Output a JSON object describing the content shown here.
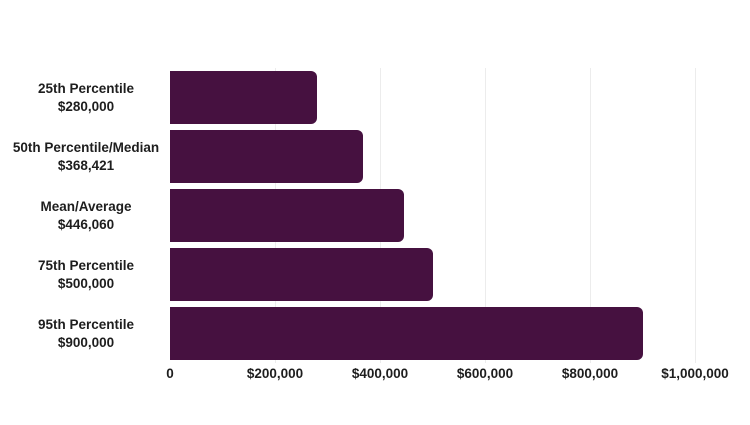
{
  "chart_data": {
    "type": "bar",
    "orientation": "horizontal",
    "title": "",
    "xlabel": "",
    "ylabel": "",
    "categories": [
      "25th Percentile",
      "50th Percentile/Median",
      "Mean/Average",
      "75th Percentile",
      "95th Percentile"
    ],
    "values": [
      280000,
      368421,
      446060,
      500000,
      900000
    ],
    "value_labels": [
      "$280,000",
      "$368,421",
      "$446,060",
      "$500,000",
      "$900,000"
    ],
    "xlim": [
      0,
      1000000
    ],
    "xticks": [
      0,
      200000,
      400000,
      600000,
      800000,
      1000000
    ],
    "xtick_labels": [
      "0",
      "$200,000",
      "$400,000",
      "$600,000",
      "$800,000",
      "$1,000,000"
    ],
    "grid": true,
    "legend": "none",
    "bar_color": "#461140",
    "gridline_color": "#ececec",
    "text_color": "#1e1e1e",
    "background_color": "#ffffff"
  }
}
